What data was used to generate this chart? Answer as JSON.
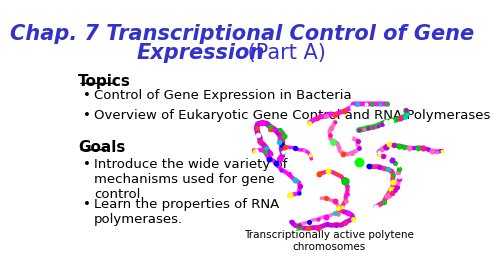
{
  "bg_color": "#ffffff",
  "title_line1": "Chap. 7 Transcriptional Control of Gene",
  "title_line2": "Expression",
  "title_part": " (Part A)",
  "title_color": "#3333cc",
  "title_fontsize": 15,
  "section1_header": "Topics",
  "section1_header_color": "#000000",
  "section1_header_fontsize": 11,
  "section1_items": [
    "Control of Gene Expression in Bacteria",
    "Overview of Eukaryotic Gene Control and RNA Polymerases"
  ],
  "section2_header": "Goals",
  "section2_header_color": "#000000",
  "section2_header_fontsize": 11,
  "section2_items": [
    "Introduce the wide variety of\nmechanisms used for gene\ncontrol.",
    "Learn the properties of RNA\npolymerases."
  ],
  "body_color": "#000000",
  "body_fontsize": 9.5,
  "caption": "Transcriptionally active polytene\nchromosomes",
  "caption_color": "#000000",
  "caption_fontsize": 7.5,
  "bullet": "•",
  "font_family": "DejaVu Sans"
}
